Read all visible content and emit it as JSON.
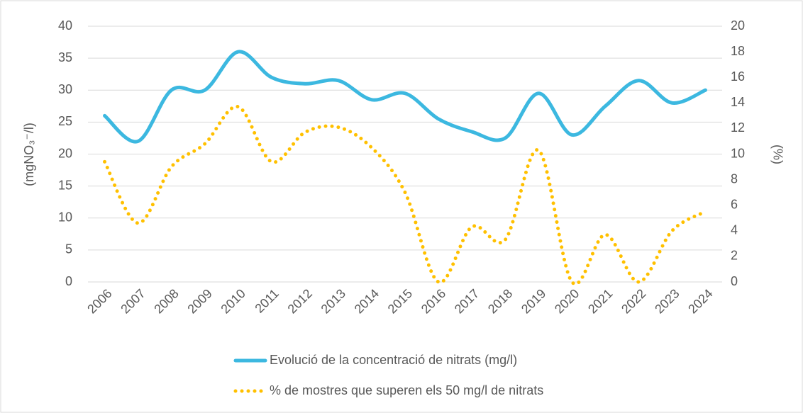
{
  "chart_data": {
    "type": "line",
    "ylabel": "(mgNO₃⁻/l)",
    "y2label": "(%)",
    "categories": [
      "2006",
      "2007",
      "2008",
      "2009",
      "2010",
      "2011",
      "2012",
      "2013",
      "2014",
      "2015",
      "2016",
      "2017",
      "2018",
      "2019",
      "2020",
      "2021",
      "2022",
      "2023",
      "2024"
    ],
    "series": [
      {
        "name": "Evolució de la concentració de nitrats (mg/l)",
        "color": "#3cb8e0",
        "values": [
          26,
          22,
          30,
          30,
          36,
          32,
          31,
          31.5,
          28.5,
          29.5,
          25.5,
          23.5,
          22.5,
          29.5,
          23,
          27.5,
          31.5,
          28,
          30
        ]
      },
      {
        "name": "% de mostres que superen els 50 mg/l de nitrats",
        "color": "#ffc000",
        "axis": "y2",
        "values": [
          9.4,
          4.6,
          9,
          10.8,
          13.7,
          9.4,
          11.7,
          12.1,
          10.5,
          7,
          0,
          4.3,
          3.3,
          10.3,
          0,
          3.7,
          0,
          4,
          5.5
        ]
      }
    ],
    "ylim": [
      0,
      40
    ],
    "yticks": [
      0,
      5,
      10,
      15,
      20,
      25,
      30,
      35,
      40
    ],
    "y2lim": [
      0,
      20
    ],
    "y2ticks": [
      0,
      2,
      4,
      6,
      8,
      10,
      12,
      14,
      16,
      18,
      20
    ],
    "grid": true,
    "legend": "bottom"
  }
}
